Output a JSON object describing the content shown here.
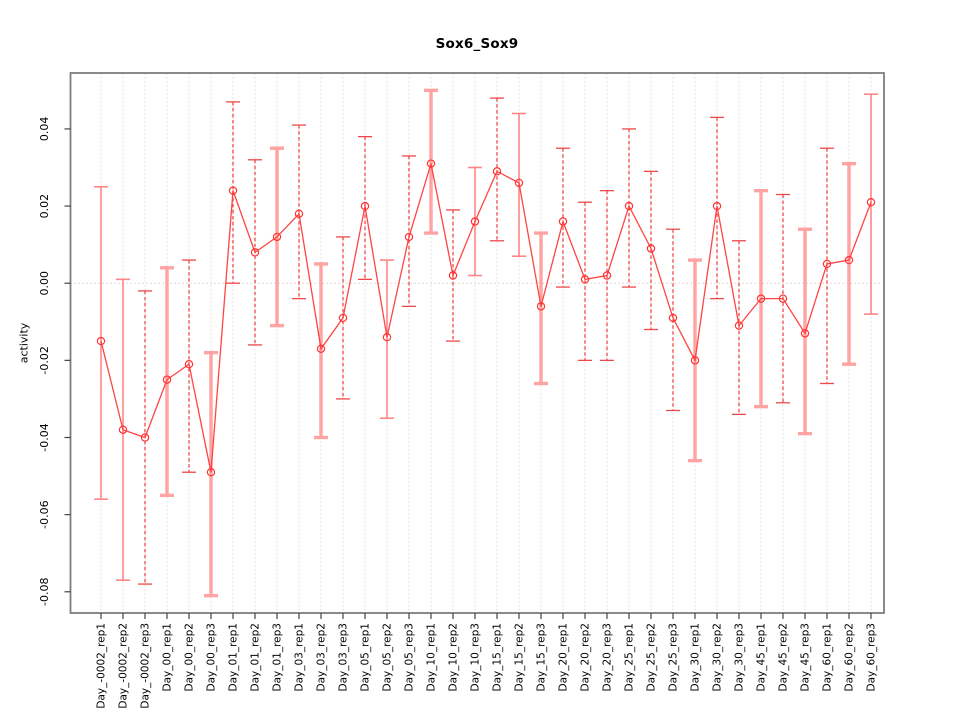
{
  "chart_data": {
    "type": "line",
    "title": "Sox6_Sox9",
    "xlabel": "",
    "ylabel": "activity",
    "ylim": [
      -0.0855,
      0.0545
    ],
    "yticks": [
      0.04,
      0.02,
      0.0,
      -0.02,
      -0.04,
      -0.06,
      -0.08
    ],
    "ytick_labels": [
      "0.04",
      "0.02",
      "0.00",
      "-0.02",
      "-0.04",
      "-0.06",
      "-0.08"
    ],
    "grid": "vertical-dotted",
    "zero_line_dotted": true,
    "legend": "none",
    "marker": "open-circle",
    "categories": [
      "Day_-0002_rep1",
      "Day_-0002_rep2",
      "Day_-0002_rep3",
      "Day_00_rep1",
      "Day_00_rep2",
      "Day_00_rep3",
      "Day_01_rep1",
      "Day_01_rep2",
      "Day_01_rep3",
      "Day_03_rep1",
      "Day_03_rep2",
      "Day_03_rep3",
      "Day_05_rep1",
      "Day_05_rep2",
      "Day_05_rep3",
      "Day_10_rep1",
      "Day_10_rep2",
      "Day_10_rep3",
      "Day_15_rep1",
      "Day_15_rep2",
      "Day_15_rep3",
      "Day_20_rep1",
      "Day_20_rep2",
      "Day_20_rep3",
      "Day_25_rep1",
      "Day_25_rep2",
      "Day_25_rep3",
      "Day_30_rep1",
      "Day_30_rep2",
      "Day_30_rep3",
      "Day_45_rep1",
      "Day_45_rep2",
      "Day_45_rep3",
      "Day_60_rep1",
      "Day_60_rep2",
      "Day_60_rep3"
    ],
    "values": [
      -0.015,
      -0.038,
      -0.04,
      -0.025,
      -0.021,
      -0.049,
      0.024,
      0.008,
      0.012,
      0.018,
      -0.017,
      -0.009,
      0.02,
      -0.014,
      0.012,
      0.031,
      0.002,
      0.016,
      0.029,
      0.026,
      -0.006,
      0.016,
      0.001,
      0.002,
      0.02,
      0.009,
      -0.009,
      -0.02,
      0.02,
      -0.011,
      -0.004,
      -0.004,
      -0.013,
      0.005,
      0.006,
      0.021
    ],
    "error_low": [
      -0.056,
      -0.077,
      -0.078,
      -0.055,
      -0.049,
      -0.081,
      0.0,
      -0.016,
      -0.011,
      -0.004,
      -0.04,
      -0.03,
      0.001,
      -0.035,
      -0.006,
      0.013,
      -0.015,
      0.002,
      0.011,
      0.007,
      -0.026,
      -0.001,
      -0.02,
      -0.02,
      -0.001,
      -0.012,
      -0.033,
      -0.046,
      -0.004,
      -0.034,
      -0.032,
      -0.031,
      -0.039,
      -0.026,
      -0.021,
      -0.008
    ],
    "error_high": [
      0.025,
      0.001,
      -0.002,
      0.004,
      0.006,
      -0.018,
      0.047,
      0.032,
      0.035,
      0.041,
      0.005,
      0.012,
      0.038,
      0.006,
      0.033,
      0.05,
      0.019,
      0.03,
      0.048,
      0.044,
      0.013,
      0.035,
      0.021,
      0.024,
      0.04,
      0.029,
      0.014,
      0.006,
      0.043,
      0.011,
      0.024,
      0.023,
      0.014,
      0.035,
      0.031,
      0.049
    ],
    "bar_styles": [
      "solid",
      "solid",
      "dashed",
      "thick",
      "dashed",
      "thick",
      "dashed",
      "dashed",
      "thick",
      "dashed",
      "thick",
      "dashed",
      "dashed",
      "solid",
      "dashed",
      "thick",
      "dashed",
      "solid",
      "dashed",
      "solid",
      "thick",
      "dashed",
      "dashed",
      "dashed",
      "dashed",
      "dashed",
      "dashed",
      "thick",
      "dashed",
      "dashed",
      "thick",
      "dashed",
      "thick",
      "dashed",
      "thick",
      "solid"
    ]
  },
  "colors": {
    "series_line": "#ff4444",
    "marker_stroke": "#ff3333",
    "bar_dashed": "#f04848",
    "bar_solid": "#ff8585",
    "bar_thick": "#ffa3a3",
    "grid": "#d9d9d9",
    "zero_line": "#e3cbcb",
    "frame": "#7d7d7d",
    "tick": "#444444",
    "text": "#000000"
  }
}
